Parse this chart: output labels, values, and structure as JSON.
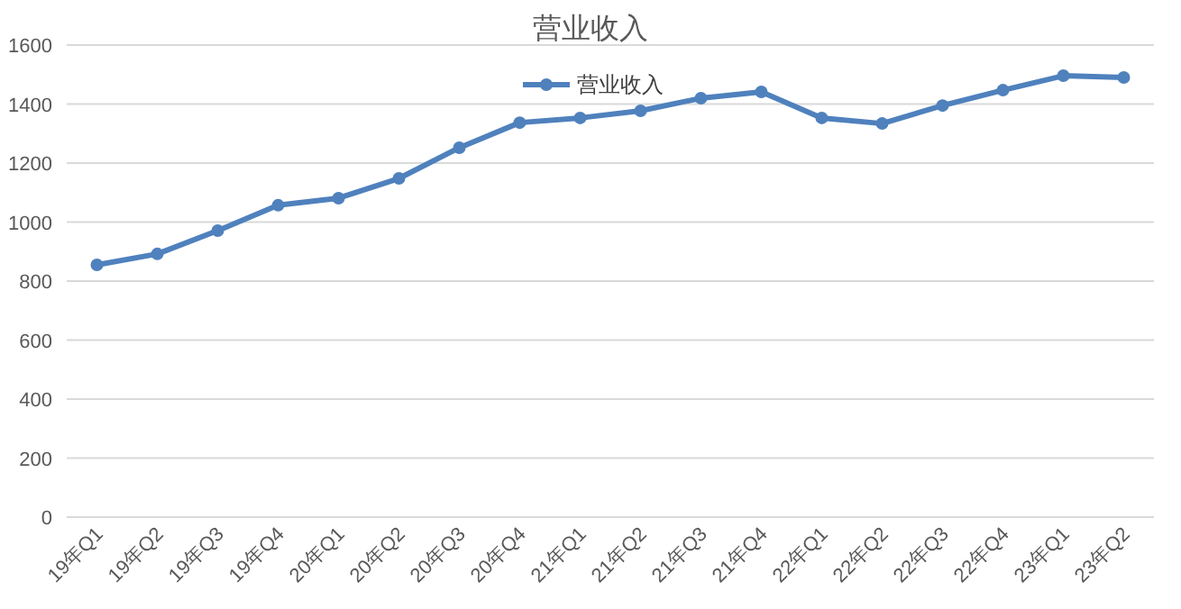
{
  "chart_data": {
    "type": "line",
    "title": "营业收入",
    "categories": [
      "19年Q1",
      "19年Q2",
      "19年Q3",
      "19年Q4",
      "20年Q1",
      "20年Q2",
      "20年Q3",
      "20年Q4",
      "21年Q1",
      "21年Q2",
      "21年Q3",
      "21年Q4",
      "22年Q1",
      "22年Q2",
      "22年Q3",
      "22年Q4",
      "23年Q1",
      "23年Q2"
    ],
    "series": [
      {
        "name": "营业收入",
        "color": "#4f81bd",
        "values": [
          855,
          892,
          971,
          1057,
          1081,
          1148,
          1252,
          1337,
          1353,
          1377,
          1420,
          1441,
          1353,
          1334,
          1395,
          1447,
          1496,
          1490
        ]
      }
    ],
    "ylim": [
      0,
      1600
    ],
    "yticks": [
      0,
      200,
      400,
      600,
      800,
      1000,
      1200,
      1400,
      1600
    ],
    "grid": "y",
    "legend": "top",
    "marker": "circle",
    "line_style": "solid"
  }
}
